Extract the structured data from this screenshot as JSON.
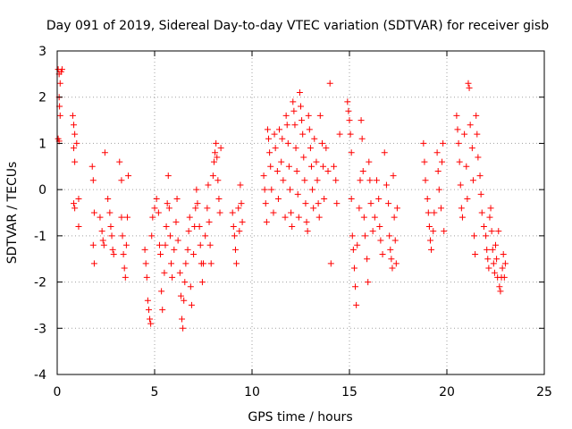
{
  "chart_data": {
    "type": "scatter",
    "title": "Day 091 of 2019, Sidereal Day-to-day VTEC variation (SDTVAR) for receiver gisb",
    "xlabel": "GPS time / hours",
    "ylabel": "SDTVAR / TECUs",
    "xlim": [
      0,
      25
    ],
    "ylim": [
      -4,
      3
    ],
    "x_ticks": [
      "0",
      "5",
      "10",
      "15",
      "20",
      "25"
    ],
    "y_ticks": [
      "-4",
      "-3",
      "-2",
      "-1",
      "0",
      "1",
      "2",
      "3"
    ],
    "grid": true,
    "marker": "plus",
    "series_color": "#ff0000",
    "series": [
      {
        "name": "SDTVAR",
        "points": [
          [
            0.05,
            2.6
          ],
          [
            0.1,
            2.5
          ],
          [
            0.15,
            2.3
          ],
          [
            0.1,
            2.0
          ],
          [
            0.12,
            1.8
          ],
          [
            0.15,
            1.6
          ],
          [
            0.05,
            1.1
          ],
          [
            0.1,
            1.05
          ],
          [
            0.2,
            2.55
          ],
          [
            0.25,
            2.6
          ],
          [
            0.8,
            1.6
          ],
          [
            0.85,
            1.4
          ],
          [
            0.9,
            1.2
          ],
          [
            0.85,
            0.9
          ],
          [
            0.9,
            0.6
          ],
          [
            0.85,
            -0.3
          ],
          [
            0.9,
            -0.4
          ],
          [
            1.0,
            1.0
          ],
          [
            1.1,
            -0.8
          ],
          [
            1.1,
            -0.2
          ],
          [
            1.8,
            0.5
          ],
          [
            1.85,
            0.2
          ],
          [
            1.9,
            -0.5
          ],
          [
            1.85,
            -1.2
          ],
          [
            1.9,
            -1.6
          ],
          [
            2.2,
            -0.6
          ],
          [
            2.3,
            -0.9
          ],
          [
            2.35,
            -1.1
          ],
          [
            2.4,
            -1.2
          ],
          [
            2.45,
            0.8
          ],
          [
            2.6,
            -0.2
          ],
          [
            2.7,
            -0.5
          ],
          [
            2.75,
            -0.8
          ],
          [
            2.8,
            -1.0
          ],
          [
            2.85,
            -1.3
          ],
          [
            2.9,
            -1.4
          ],
          [
            3.2,
            0.6
          ],
          [
            3.3,
            0.2
          ],
          [
            3.3,
            -0.6
          ],
          [
            3.35,
            -1.0
          ],
          [
            3.4,
            -1.4
          ],
          [
            3.45,
            -1.7
          ],
          [
            3.5,
            -1.9
          ],
          [
            3.55,
            -1.2
          ],
          [
            3.6,
            -0.6
          ],
          [
            3.65,
            0.3
          ],
          [
            4.5,
            -1.3
          ],
          [
            4.55,
            -1.6
          ],
          [
            4.6,
            -1.9
          ],
          [
            4.65,
            -2.4
          ],
          [
            4.7,
            -2.6
          ],
          [
            4.75,
            -2.8
          ],
          [
            4.8,
            -2.9
          ],
          [
            4.85,
            -1.0
          ],
          [
            4.9,
            -0.6
          ],
          [
            5.0,
            -0.4
          ],
          [
            5.1,
            -0.2
          ],
          [
            5.2,
            -0.5
          ],
          [
            5.25,
            -1.2
          ],
          [
            5.3,
            -1.4
          ],
          [
            5.35,
            -2.2
          ],
          [
            5.4,
            -2.6
          ],
          [
            5.5,
            -1.8
          ],
          [
            5.55,
            -1.2
          ],
          [
            5.6,
            -0.8
          ],
          [
            5.65,
            -0.3
          ],
          [
            5.7,
            0.3
          ],
          [
            5.75,
            -0.4
          ],
          [
            5.8,
            -1.0
          ],
          [
            5.85,
            -1.6
          ],
          [
            5.9,
            -1.9
          ],
          [
            6.0,
            -1.3
          ],
          [
            6.1,
            -0.7
          ],
          [
            6.15,
            -0.2
          ],
          [
            6.2,
            -1.1
          ],
          [
            6.3,
            -1.8
          ],
          [
            6.35,
            -2.3
          ],
          [
            6.4,
            -2.8
          ],
          [
            6.45,
            -3.0
          ],
          [
            6.5,
            -2.4
          ],
          [
            6.55,
            -2.0
          ],
          [
            6.6,
            -1.6
          ],
          [
            6.7,
            -1.3
          ],
          [
            6.75,
            -0.9
          ],
          [
            6.8,
            -0.6
          ],
          [
            6.85,
            -2.1
          ],
          [
            6.9,
            -2.5
          ],
          [
            7.0,
            -1.4
          ],
          [
            7.05,
            -0.8
          ],
          [
            7.1,
            -0.4
          ],
          [
            7.15,
            0.0
          ],
          [
            7.2,
            -0.3
          ],
          [
            7.3,
            -0.8
          ],
          [
            7.35,
            -1.2
          ],
          [
            7.4,
            -1.6
          ],
          [
            7.45,
            -2.0
          ],
          [
            7.5,
            -1.6
          ],
          [
            7.6,
            -1.0
          ],
          [
            7.7,
            -0.4
          ],
          [
            7.75,
            0.1
          ],
          [
            7.8,
            -0.7
          ],
          [
            7.85,
            -1.2
          ],
          [
            7.9,
            -1.6
          ],
          [
            8.0,
            0.3
          ],
          [
            8.05,
            0.6
          ],
          [
            8.1,
            0.8
          ],
          [
            8.15,
            1.0
          ],
          [
            8.2,
            0.7
          ],
          [
            8.25,
            0.2
          ],
          [
            8.3,
            -0.2
          ],
          [
            8.35,
            -0.5
          ],
          [
            8.4,
            0.9
          ],
          [
            9.0,
            -0.5
          ],
          [
            9.05,
            -0.8
          ],
          [
            9.1,
            -1.0
          ],
          [
            9.15,
            -1.3
          ],
          [
            9.2,
            -1.6
          ],
          [
            9.3,
            -0.4
          ],
          [
            9.35,
            -0.9
          ],
          [
            9.4,
            0.1
          ],
          [
            9.45,
            -0.3
          ],
          [
            9.5,
            -0.7
          ],
          [
            10.6,
            0.3
          ],
          [
            10.65,
            0.0
          ],
          [
            10.7,
            -0.3
          ],
          [
            10.75,
            -0.7
          ],
          [
            10.8,
            1.3
          ],
          [
            10.85,
            1.1
          ],
          [
            10.9,
            0.8
          ],
          [
            10.95,
            0.5
          ],
          [
            11.0,
            0.0
          ],
          [
            11.1,
            -0.5
          ],
          [
            11.15,
            1.2
          ],
          [
            11.2,
            0.9
          ],
          [
            11.3,
            0.4
          ],
          [
            11.35,
            -0.2
          ],
          [
            11.4,
            1.3
          ],
          [
            11.5,
            0.6
          ],
          [
            11.55,
            1.1
          ],
          [
            11.6,
            0.2
          ],
          [
            11.7,
            -0.6
          ],
          [
            11.75,
            1.6
          ],
          [
            11.8,
            1.4
          ],
          [
            11.85,
            1.0
          ],
          [
            11.9,
            0.5
          ],
          [
            11.95,
            0.0
          ],
          [
            12.0,
            -0.5
          ],
          [
            12.05,
            -0.8
          ],
          [
            12.1,
            1.9
          ],
          [
            12.15,
            1.7
          ],
          [
            12.2,
            1.4
          ],
          [
            12.25,
            0.9
          ],
          [
            12.3,
            0.4
          ],
          [
            12.35,
            -0.1
          ],
          [
            12.4,
            -0.6
          ],
          [
            12.45,
            2.1
          ],
          [
            12.5,
            1.8
          ],
          [
            12.55,
            1.5
          ],
          [
            12.6,
            1.2
          ],
          [
            12.65,
            0.7
          ],
          [
            12.7,
            0.2
          ],
          [
            12.75,
            -0.3
          ],
          [
            12.8,
            -0.7
          ],
          [
            12.85,
            -0.9
          ],
          [
            12.9,
            1.6
          ],
          [
            12.95,
            1.3
          ],
          [
            13.0,
            0.9
          ],
          [
            13.05,
            0.5
          ],
          [
            13.1,
            0.0
          ],
          [
            13.15,
            -0.4
          ],
          [
            13.2,
            1.1
          ],
          [
            13.3,
            0.6
          ],
          [
            13.35,
            0.2
          ],
          [
            13.4,
            -0.3
          ],
          [
            13.45,
            -0.6
          ],
          [
            13.5,
            1.6
          ],
          [
            13.6,
            1.0
          ],
          [
            13.65,
            0.5
          ],
          [
            13.7,
            -0.2
          ],
          [
            13.8,
            0.9
          ],
          [
            13.9,
            0.4
          ],
          [
            14.0,
            2.3
          ],
          [
            14.05,
            -1.6
          ],
          [
            14.2,
            0.5
          ],
          [
            14.3,
            0.2
          ],
          [
            14.35,
            -0.3
          ],
          [
            14.5,
            1.2
          ],
          [
            14.9,
            1.9
          ],
          [
            14.95,
            1.7
          ],
          [
            15.0,
            1.5
          ],
          [
            15.05,
            1.2
          ],
          [
            15.1,
            0.8
          ],
          [
            15.1,
            -0.2
          ],
          [
            15.15,
            -1.0
          ],
          [
            15.2,
            -1.3
          ],
          [
            15.25,
            -1.7
          ],
          [
            15.3,
            -2.1
          ],
          [
            15.35,
            -2.5
          ],
          [
            15.4,
            -1.2
          ],
          [
            15.5,
            -0.4
          ],
          [
            15.55,
            0.2
          ],
          [
            15.6,
            1.5
          ],
          [
            15.65,
            1.1
          ],
          [
            15.7,
            0.4
          ],
          [
            15.75,
            -0.6
          ],
          [
            15.8,
            -1.0
          ],
          [
            15.9,
            -1.5
          ],
          [
            15.95,
            -2.0
          ],
          [
            16.0,
            0.6
          ],
          [
            16.05,
            0.2
          ],
          [
            16.1,
            -0.3
          ],
          [
            16.2,
            -0.9
          ],
          [
            16.3,
            -0.6
          ],
          [
            16.4,
            0.2
          ],
          [
            16.5,
            -0.2
          ],
          [
            16.55,
            -0.8
          ],
          [
            16.6,
            -1.1
          ],
          [
            16.7,
            -1.4
          ],
          [
            16.8,
            0.8
          ],
          [
            16.9,
            0.1
          ],
          [
            17.0,
            -0.3
          ],
          [
            17.05,
            -1.0
          ],
          [
            17.1,
            -1.3
          ],
          [
            17.15,
            -1.5
          ],
          [
            17.2,
            -1.7
          ],
          [
            17.25,
            0.3
          ],
          [
            17.3,
            -0.6
          ],
          [
            17.35,
            -1.1
          ],
          [
            17.4,
            -1.6
          ],
          [
            17.45,
            -0.4
          ],
          [
            18.8,
            1.0
          ],
          [
            18.85,
            0.6
          ],
          [
            18.9,
            0.2
          ],
          [
            19.0,
            -0.2
          ],
          [
            19.05,
            -0.5
          ],
          [
            19.1,
            -0.8
          ],
          [
            19.15,
            -1.1
          ],
          [
            19.2,
            -1.3
          ],
          [
            19.3,
            -0.9
          ],
          [
            19.35,
            -0.5
          ],
          [
            19.5,
            0.8
          ],
          [
            19.55,
            0.4
          ],
          [
            19.6,
            0.0
          ],
          [
            19.7,
            -0.4
          ],
          [
            19.75,
            0.6
          ],
          [
            19.8,
            1.0
          ],
          [
            19.85,
            -0.9
          ],
          [
            20.5,
            1.6
          ],
          [
            20.55,
            1.3
          ],
          [
            20.6,
            1.0
          ],
          [
            20.65,
            0.6
          ],
          [
            20.7,
            0.1
          ],
          [
            20.75,
            -0.4
          ],
          [
            20.8,
            -0.6
          ],
          [
            20.9,
            1.2
          ],
          [
            21.0,
            0.5
          ],
          [
            21.05,
            -0.2
          ],
          [
            21.1,
            2.3
          ],
          [
            21.15,
            2.2
          ],
          [
            21.2,
            1.4
          ],
          [
            21.3,
            0.9
          ],
          [
            21.35,
            0.2
          ],
          [
            21.4,
            -1.0
          ],
          [
            21.45,
            -1.4
          ],
          [
            21.5,
            1.6
          ],
          [
            21.55,
            1.2
          ],
          [
            21.6,
            0.7
          ],
          [
            21.7,
            0.3
          ],
          [
            21.75,
            -0.1
          ],
          [
            21.8,
            -0.5
          ],
          [
            21.9,
            -0.8
          ],
          [
            22.0,
            -1.0
          ],
          [
            22.05,
            -1.3
          ],
          [
            22.1,
            -1.5
          ],
          [
            22.15,
            -1.7
          ],
          [
            22.2,
            -0.6
          ],
          [
            22.3,
            -0.9
          ],
          [
            22.35,
            -1.3
          ],
          [
            22.4,
            -1.6
          ],
          [
            22.45,
            -1.8
          ],
          [
            22.5,
            -1.2
          ],
          [
            22.55,
            -1.5
          ],
          [
            22.6,
            -1.9
          ],
          [
            22.7,
            -2.1
          ],
          [
            22.75,
            -2.2
          ],
          [
            22.8,
            -1.9
          ],
          [
            22.85,
            -1.7
          ],
          [
            22.9,
            -1.4
          ],
          [
            22.95,
            -1.9
          ],
          [
            23.0,
            -1.6
          ],
          [
            22.65,
            -0.9
          ],
          [
            22.25,
            -0.4
          ]
        ]
      }
    ]
  }
}
